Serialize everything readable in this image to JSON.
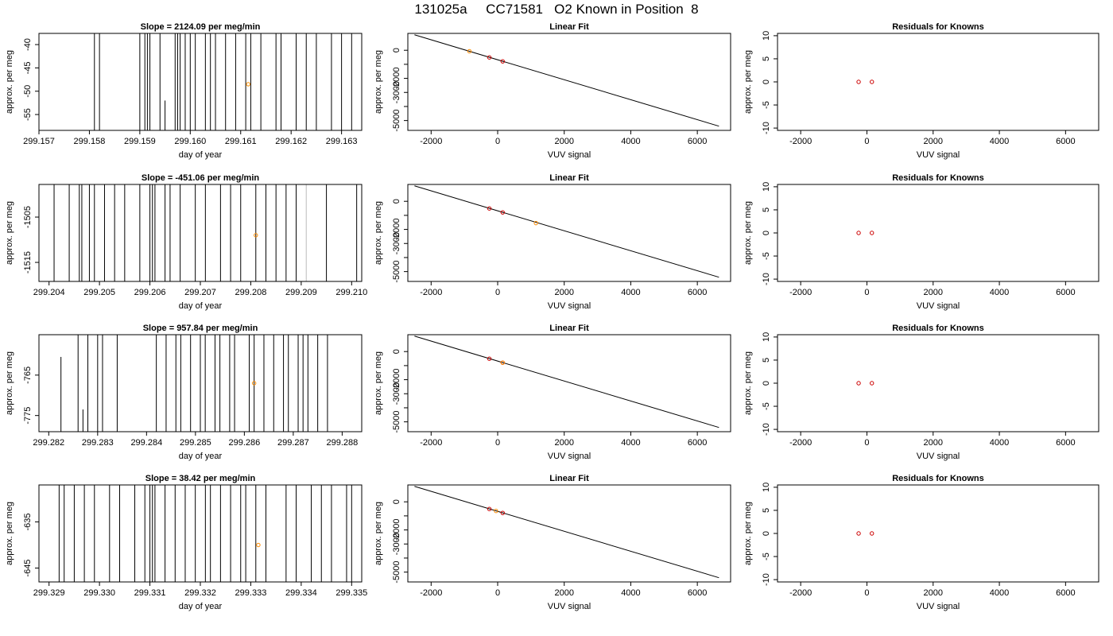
{
  "main_title": "131025a     CC71581   O2 Known in Position  8",
  "colors": {
    "axis": "#000000",
    "trace": "#000000",
    "known_point": "#ff8c00",
    "fit_point": "#cc0000",
    "residual_point": "#cc0000"
  },
  "chart_data": [
    {
      "type": "line",
      "title": "Slope =  2124.09  per meg/min",
      "xlabel": "day of year",
      "ylabel": "approx. per meg",
      "xlim": [
        299.157,
        299.1634
      ],
      "ylim": [
        -58.4,
        -37.6
      ],
      "xticks": [
        299.157,
        299.158,
        299.159,
        299.16,
        299.161,
        299.162,
        299.163
      ],
      "xtick_labels": [
        "299.157",
        "299.158",
        "299.159",
        "299.160",
        "299.161",
        "299.162",
        "299.163"
      ],
      "yticks": [
        -55,
        -50,
        -45,
        -40
      ],
      "ytick_labels": [
        "-55",
        "-50",
        "-45",
        "-40"
      ],
      "vlines": [
        299.1581,
        299.1582,
        299.159,
        299.1591,
        299.15915,
        299.1592,
        299.1594,
        299.1597,
        299.15975,
        299.1598,
        299.1599,
        299.16,
        299.1601,
        299.1603,
        299.1604,
        299.1605,
        299.1607,
        299.1609,
        299.1611,
        299.1612,
        299.1614,
        299.1617,
        299.1618,
        299.1621,
        299.1623,
        299.1625,
        299.1628,
        299.163,
        299.1632
      ],
      "short_lines": [
        {
          "x": 299.1595,
          "y_from": -58.4,
          "y_to": -52.0
        }
      ],
      "points": [
        {
          "x": 299.16115,
          "y": -48.5
        }
      ]
    },
    {
      "type": "scatter",
      "title": "Linear Fit",
      "xlabel": "VUV signal",
      "ylabel": "approx. per meg",
      "xlim": [
        -2700,
        7000
      ],
      "ylim": [
        -5700,
        1200
      ],
      "xticks": [
        -2000,
        0,
        2000,
        4000,
        6000
      ],
      "xtick_labels": [
        "-2000",
        "0",
        "2000",
        "4000",
        "6000"
      ],
      "yticks": [
        -5000,
        -4000,
        -3000,
        -2000,
        -1000,
        0
      ],
      "ytick_labels": [
        "-5000",
        "",
        "-3000",
        "-2000",
        "",
        "0"
      ],
      "fit_line": [
        [
          -2500,
          1100
        ],
        [
          6650,
          -5400
        ]
      ],
      "points": [
        {
          "x": -250,
          "y": -510,
          "color": "fit"
        },
        {
          "x": 150,
          "y": -790,
          "color": "fit"
        },
        {
          "x": -850,
          "y": -70,
          "color": "known"
        }
      ]
    },
    {
      "type": "scatter",
      "title": "Residuals for Knowns",
      "xlabel": "VUV signal",
      "ylabel": "approx. per meg",
      "xlim": [
        -2700,
        7000
      ],
      "ylim": [
        -10.5,
        10.5
      ],
      "xticks": [
        -2000,
        0,
        2000,
        4000,
        6000
      ],
      "xtick_labels": [
        "-2000",
        "0",
        "2000",
        "4000",
        "6000"
      ],
      "yticks": [
        -10,
        -5,
        0,
        5,
        10
      ],
      "ytick_labels": [
        "-10",
        "-5",
        "0",
        "5",
        "10"
      ],
      "points": [
        {
          "x": -250,
          "y": 0
        },
        {
          "x": 150,
          "y": 0
        }
      ]
    },
    {
      "type": "line",
      "title": "Slope =  -451.06  per meg/min",
      "xlabel": "day of year",
      "ylabel": "approx. per meg",
      "xlim": [
        299.2038,
        299.2102
      ],
      "ylim": [
        -1519.2,
        -1497.8
      ],
      "xticks": [
        299.204,
        299.205,
        299.206,
        299.207,
        299.208,
        299.209,
        299.21
      ],
      "xtick_labels": [
        "299.204",
        "299.205",
        "299.206",
        "299.207",
        "299.208",
        "299.209",
        "299.210"
      ],
      "yticks": [
        -1515,
        -1505
      ],
      "ytick_labels": [
        "-1515",
        "-1505"
      ],
      "vlines": [
        299.2041,
        299.2044,
        299.2046,
        299.20465,
        299.2048,
        299.2049,
        299.2051,
        299.2053,
        299.2055,
        299.2058,
        299.206,
        299.20605,
        299.2061,
        299.2063,
        299.2064,
        299.2066,
        299.2069,
        299.2071,
        299.2074,
        299.2076,
        299.2078,
        299.2081,
        299.2083,
        299.2085,
        299.2087,
        299.2089,
        299.2095,
        299.2101
      ],
      "grey_vlines": [
        299.2091
      ],
      "short_lines": [],
      "points": [
        {
          "x": 299.2081,
          "y": -1509.0
        }
      ]
    },
    {
      "type": "scatter",
      "title": "Linear Fit",
      "xlabel": "VUV signal",
      "ylabel": "approx. per meg",
      "xlim": [
        -2700,
        7000
      ],
      "ylim": [
        -5700,
        1200
      ],
      "xticks": [
        -2000,
        0,
        2000,
        4000,
        6000
      ],
      "xtick_labels": [
        "-2000",
        "0",
        "2000",
        "4000",
        "6000"
      ],
      "yticks": [
        -5000,
        -4000,
        -3000,
        -2000,
        -1000,
        0
      ],
      "ytick_labels": [
        "-5000",
        "",
        "-3000",
        "-2000",
        "",
        "0"
      ],
      "fit_line": [
        [
          -2500,
          1100
        ],
        [
          6650,
          -5400
        ]
      ],
      "points": [
        {
          "x": -250,
          "y": -510,
          "color": "fit"
        },
        {
          "x": 150,
          "y": -790,
          "color": "fit"
        },
        {
          "x": 1150,
          "y": -1550,
          "color": "known"
        }
      ]
    },
    {
      "type": "scatter",
      "title": "Residuals for Knowns",
      "xlabel": "VUV signal",
      "ylabel": "approx. per meg",
      "xlim": [
        -2700,
        7000
      ],
      "ylim": [
        -10.5,
        10.5
      ],
      "xticks": [
        -2000,
        0,
        2000,
        4000,
        6000
      ],
      "xtick_labels": [
        "-2000",
        "0",
        "2000",
        "4000",
        "6000"
      ],
      "yticks": [
        -10,
        -5,
        0,
        5,
        10
      ],
      "ytick_labels": [
        "-10",
        "-5",
        "0",
        "5",
        "10"
      ],
      "points": [
        {
          "x": -250,
          "y": 0
        },
        {
          "x": 150,
          "y": 0
        }
      ]
    },
    {
      "type": "line",
      "title": "Slope =  957.84  per meg/min",
      "xlabel": "day of year",
      "ylabel": "approx. per meg",
      "xlim": [
        299.2818,
        299.2884
      ],
      "ylim": [
        -779.0,
        -755.0
      ],
      "xticks": [
        299.282,
        299.283,
        299.284,
        299.285,
        299.286,
        299.287,
        299.288
      ],
      "xtick_labels": [
        "299.282",
        "299.283",
        "299.284",
        "299.285",
        "299.286",
        "299.287",
        "299.288"
      ],
      "yticks": [
        -775,
        -765
      ],
      "ytick_labels": [
        "-775",
        "-765"
      ],
      "vlines": [
        299.2826,
        299.2828,
        299.283,
        299.2831,
        299.2834,
        299.2842,
        299.2844,
        299.2846,
        299.2847,
        299.2849,
        299.2851,
        299.2852,
        299.2854,
        299.2855,
        299.2857,
        299.2858,
        299.2861,
        299.2862,
        299.2864,
        299.2866,
        299.2868,
        299.2869,
        299.2871,
        299.2872,
        299.2873,
        299.2875,
        299.2877
      ],
      "short_lines": [
        {
          "x": 299.28225,
          "y_from": -779.0,
          "y_to": -760.5
        },
        {
          "x": 299.2827,
          "y_from": -779.0,
          "y_to": -773.5
        }
      ],
      "points": [
        {
          "x": 299.2862,
          "y": -767.0
        }
      ]
    },
    {
      "type": "scatter",
      "title": "Linear Fit",
      "xlabel": "VUV signal",
      "ylabel": "approx. per meg",
      "xlim": [
        -2700,
        7000
      ],
      "ylim": [
        -5700,
        1200
      ],
      "xticks": [
        -2000,
        0,
        2000,
        4000,
        6000
      ],
      "xtick_labels": [
        "-2000",
        "0",
        "2000",
        "4000",
        "6000"
      ],
      "yticks": [
        -5000,
        -4000,
        -3000,
        -2000,
        -1000,
        0
      ],
      "ytick_labels": [
        "-5000",
        "",
        "-3000",
        "-2000",
        "",
        "0"
      ],
      "fit_line": [
        [
          -2500,
          1100
        ],
        [
          6650,
          -5400
        ]
      ],
      "points": [
        {
          "x": -250,
          "y": -510,
          "color": "fit"
        },
        {
          "x": 150,
          "y": -790,
          "color": "fit"
        },
        {
          "x": 150,
          "y": -790,
          "color": "known"
        }
      ]
    },
    {
      "type": "scatter",
      "title": "Residuals for Knowns",
      "xlabel": "VUV signal",
      "ylabel": "approx. per meg",
      "xlim": [
        -2700,
        7000
      ],
      "ylim": [
        -10.5,
        10.5
      ],
      "xticks": [
        -2000,
        0,
        2000,
        4000,
        6000
      ],
      "xtick_labels": [
        "-2000",
        "0",
        "2000",
        "4000",
        "6000"
      ],
      "yticks": [
        -10,
        -5,
        0,
        5,
        10
      ],
      "ytick_labels": [
        "-10",
        "-5",
        "0",
        "5",
        "10"
      ],
      "points": [
        {
          "x": -250,
          "y": 0
        },
        {
          "x": 150,
          "y": 0
        }
      ]
    },
    {
      "type": "line",
      "title": "Slope =  38.42  per meg/min",
      "xlabel": "day of year",
      "ylabel": "approx. per meg",
      "xlim": [
        299.3288,
        299.3352
      ],
      "ylim": [
        -648.0,
        -627.0
      ],
      "xticks": [
        299.329,
        299.33,
        299.331,
        299.332,
        299.333,
        299.334,
        299.335
      ],
      "xtick_labels": [
        "299.329",
        "299.330",
        "299.331",
        "299.332",
        "299.333",
        "299.334",
        "299.335"
      ],
      "yticks": [
        -645,
        -635
      ],
      "ytick_labels": [
        "-645",
        "-635"
      ],
      "vlines": [
        299.3292,
        299.3293,
        299.3295,
        299.3297,
        299.3299,
        299.3302,
        299.3304,
        299.3307,
        299.3309,
        299.331,
        299.33105,
        299.3311,
        299.3313,
        299.3315,
        299.3317,
        299.3319,
        299.3321,
        299.3322,
        299.3324,
        299.3326,
        299.3328,
        299.3329,
        299.3331,
        299.3333,
        299.3337,
        299.3339,
        299.3342,
        299.3344,
        299.3346,
        299.3349,
        299.335
      ],
      "short_lines": [],
      "points": [
        {
          "x": 299.33315,
          "y": -640.0
        }
      ]
    },
    {
      "type": "scatter",
      "title": "Linear Fit",
      "xlabel": "VUV signal",
      "ylabel": "approx. per meg",
      "xlim": [
        -2700,
        7000
      ],
      "ylim": [
        -5700,
        1200
      ],
      "xticks": [
        -2000,
        0,
        2000,
        4000,
        6000
      ],
      "xtick_labels": [
        "-2000",
        "0",
        "2000",
        "4000",
        "6000"
      ],
      "yticks": [
        -5000,
        -4000,
        -3000,
        -2000,
        -1000,
        0
      ],
      "ytick_labels": [
        "-5000",
        "",
        "-3000",
        "-2000",
        "",
        "0"
      ],
      "fit_line": [
        [
          -2500,
          1100
        ],
        [
          6650,
          -5400
        ]
      ],
      "points": [
        {
          "x": -250,
          "y": -510,
          "color": "fit"
        },
        {
          "x": 150,
          "y": -790,
          "color": "fit"
        },
        {
          "x": -50,
          "y": -650,
          "color": "known"
        }
      ]
    },
    {
      "type": "scatter",
      "title": "Residuals for Knowns",
      "xlabel": "VUV signal",
      "ylabel": "approx. per meg",
      "xlim": [
        -2700,
        7000
      ],
      "ylim": [
        -10.5,
        10.5
      ],
      "xticks": [
        -2000,
        0,
        2000,
        4000,
        6000
      ],
      "xtick_labels": [
        "-2000",
        "0",
        "2000",
        "4000",
        "6000"
      ],
      "yticks": [
        -10,
        -5,
        0,
        5,
        10
      ],
      "ytick_labels": [
        "-10",
        "-5",
        "0",
        "5",
        "10"
      ],
      "points": [
        {
          "x": -250,
          "y": 0
        },
        {
          "x": 150,
          "y": 0
        }
      ]
    }
  ]
}
